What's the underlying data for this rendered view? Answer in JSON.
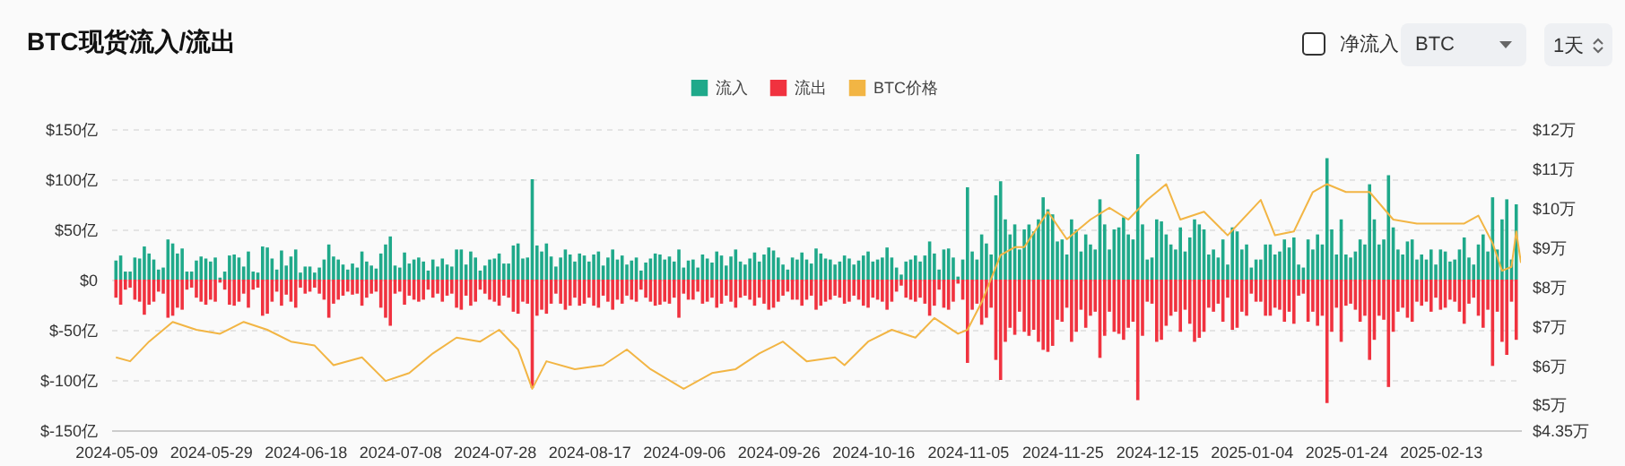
{
  "chart_data": {
    "type": "bar",
    "title": "BTC现货流入/流出",
    "annotations": [
      "净流入",
      "BTC",
      "1天"
    ],
    "x": [
      "2024-05-09",
      "2024-05-10",
      "2024-05-11",
      "2024-05-12",
      "2024-05-13",
      "2024-05-14",
      "2024-05-15",
      "2024-05-16",
      "2024-05-17",
      "2024-05-18",
      "2024-05-19",
      "2024-05-20",
      "2024-05-21",
      "2024-05-22",
      "2024-05-23",
      "2024-05-24",
      "2024-05-25",
      "2024-05-26",
      "2024-05-27",
      "2024-05-28",
      "2024-05-29",
      "2024-05-30",
      "2024-05-31",
      "2024-06-01",
      "2024-06-02",
      "2024-06-03",
      "2024-06-04",
      "2024-06-05",
      "2024-06-06",
      "2024-06-07",
      "2024-06-08",
      "2024-06-09",
      "2024-06-10",
      "2024-06-11",
      "2024-06-12",
      "2024-06-13",
      "2024-06-14",
      "2024-06-15",
      "2024-06-16",
      "2024-06-17",
      "2024-06-18",
      "2024-06-19",
      "2024-06-20",
      "2024-06-21",
      "2024-06-22",
      "2024-06-23",
      "2024-06-24",
      "2024-06-25",
      "2024-06-26",
      "2024-06-27",
      "2024-06-28",
      "2024-06-29",
      "2024-06-30",
      "2024-07-01",
      "2024-07-02",
      "2024-07-03",
      "2024-07-04",
      "2024-07-05",
      "2024-07-06",
      "2024-07-07",
      "2024-07-08",
      "2024-07-09",
      "2024-07-10",
      "2024-07-11",
      "2024-07-12",
      "2024-07-13",
      "2024-07-14",
      "2024-07-15",
      "2024-07-16",
      "2024-07-17",
      "2024-07-18",
      "2024-07-19",
      "2024-07-20",
      "2024-07-21",
      "2024-07-22",
      "2024-07-23",
      "2024-07-24",
      "2024-07-25",
      "2024-07-26",
      "2024-07-27",
      "2024-07-28",
      "2024-07-29",
      "2024-07-30",
      "2024-07-31",
      "2024-08-01",
      "2024-08-02",
      "2024-08-03",
      "2024-08-04",
      "2024-08-05",
      "2024-08-06",
      "2024-08-07",
      "2024-08-08",
      "2024-08-09",
      "2024-08-10",
      "2024-08-11",
      "2024-08-12",
      "2024-08-13",
      "2024-08-14",
      "2024-08-15",
      "2024-08-16",
      "2024-08-17",
      "2024-08-18",
      "2024-08-19",
      "2024-08-20",
      "2024-08-21",
      "2024-08-22",
      "2024-08-23",
      "2024-08-24",
      "2024-08-25",
      "2024-08-26",
      "2024-08-27",
      "2024-08-28",
      "2024-08-29",
      "2024-08-30",
      "2024-08-31",
      "2024-09-01",
      "2024-09-02",
      "2024-09-03",
      "2024-09-04",
      "2024-09-05",
      "2024-09-06",
      "2024-09-07",
      "2024-09-08",
      "2024-09-09",
      "2024-09-10",
      "2024-09-11",
      "2024-09-12",
      "2024-09-13",
      "2024-09-14",
      "2024-09-15",
      "2024-09-16",
      "2024-09-17",
      "2024-09-18",
      "2024-09-19",
      "2024-09-20",
      "2024-09-21",
      "2024-09-22",
      "2024-09-23",
      "2024-09-24",
      "2024-09-25",
      "2024-09-26",
      "2024-09-27",
      "2024-09-28",
      "2024-09-29",
      "2024-09-30",
      "2024-10-01",
      "2024-10-02",
      "2024-10-03",
      "2024-10-04",
      "2024-10-05",
      "2024-10-06",
      "2024-10-07",
      "2024-10-08",
      "2024-10-09",
      "2024-10-10",
      "2024-10-11",
      "2024-10-12",
      "2024-10-13",
      "2024-10-14",
      "2024-10-15",
      "2024-10-16",
      "2024-10-17",
      "2024-10-18",
      "2024-10-19",
      "2024-10-20",
      "2024-10-21",
      "2024-10-22",
      "2024-10-23",
      "2024-10-24",
      "2024-10-25",
      "2024-10-26",
      "2024-10-27",
      "2024-10-28",
      "2024-10-29",
      "2024-10-30",
      "2024-10-31",
      "2024-11-01",
      "2024-11-02",
      "2024-11-03",
      "2024-11-04",
      "2024-11-05",
      "2024-11-06",
      "2024-11-07",
      "2024-11-08",
      "2024-11-09",
      "2024-11-10",
      "2024-11-11",
      "2024-11-12",
      "2024-11-13",
      "2024-11-14",
      "2024-11-15",
      "2024-11-16",
      "2024-11-17",
      "2024-11-18",
      "2024-11-19",
      "2024-11-20",
      "2024-11-21",
      "2024-11-22",
      "2024-11-23",
      "2024-11-24",
      "2024-11-25",
      "2024-11-26",
      "2024-11-27",
      "2024-11-28",
      "2024-11-29",
      "2024-11-30",
      "2024-12-01",
      "2024-12-02",
      "2024-12-03",
      "2024-12-04",
      "2024-12-05",
      "2024-12-06",
      "2024-12-07",
      "2024-12-08",
      "2024-12-09",
      "2024-12-10",
      "2024-12-11",
      "2024-12-12",
      "2024-12-13",
      "2024-12-14",
      "2024-12-15",
      "2024-12-16",
      "2024-12-17",
      "2024-12-18",
      "2024-12-19",
      "2024-12-20",
      "2024-12-21",
      "2024-12-22",
      "2024-12-23",
      "2024-12-24",
      "2024-12-25",
      "2024-12-26",
      "2024-12-27",
      "2024-12-28",
      "2024-12-29",
      "2024-12-30",
      "2024-12-31",
      "2025-01-01",
      "2025-01-02",
      "2025-01-03",
      "2025-01-04",
      "2025-01-05",
      "2025-01-06",
      "2025-01-07",
      "2025-01-08",
      "2025-01-09",
      "2025-01-10",
      "2025-01-11",
      "2025-01-12",
      "2025-01-13",
      "2025-01-14",
      "2025-01-15",
      "2025-01-16",
      "2025-01-17",
      "2025-01-18",
      "2025-01-19",
      "2025-01-20",
      "2025-01-21",
      "2025-01-22",
      "2025-01-23",
      "2025-01-24",
      "2025-01-25",
      "2025-01-26",
      "2025-01-27",
      "2025-01-28",
      "2025-01-29",
      "2025-01-30",
      "2025-01-31",
      "2025-02-01",
      "2025-02-02",
      "2025-02-03",
      "2025-02-04",
      "2025-02-05",
      "2025-02-06",
      "2025-02-07",
      "2025-02-08",
      "2025-02-09",
      "2025-02-10",
      "2025-02-11",
      "2025-02-12",
      "2025-02-13",
      "2025-02-14",
      "2025-02-15",
      "2025-02-16",
      "2025-02-17",
      "2025-02-18",
      "2025-02-19",
      "2025-02-20",
      "2025-02-21",
      "2025-02-22",
      "2025-02-23",
      "2025-02-24",
      "2025-02-25",
      "2025-02-26",
      "2025-02-27",
      "2025-02-28",
      "2025-03-01"
    ],
    "xlim": [
      "2024-05-08",
      "2025-03-02"
    ],
    "xticks": [
      "2024-05-09",
      "2024-05-29",
      "2024-06-18",
      "2024-07-08",
      "2024-07-28",
      "2024-08-17",
      "2024-09-06",
      "2024-09-26",
      "2024-10-16",
      "2024-11-05",
      "2024-11-25",
      "2024-12-15",
      "2025-01-04",
      "2025-01-24",
      "2025-02-13"
    ],
    "ylim": [
      -150,
      150
    ],
    "yticks": [
      {
        "value": -150,
        "label": "$-150亿"
      },
      {
        "value": -100,
        "label": "$-100亿"
      },
      {
        "value": -50,
        "label": "$-50亿"
      },
      {
        "value": 0,
        "label": "$0"
      },
      {
        "value": 50,
        "label": "$50亿"
      },
      {
        "value": 100,
        "label": "$100亿"
      },
      {
        "value": 150,
        "label": "$150亿"
      }
    ],
    "y2lim": [
      4.35,
      12
    ],
    "y2ticks": [
      {
        "value": 4.35,
        "label": "$4.35万"
      },
      {
        "value": 5,
        "label": "$5万"
      },
      {
        "value": 6,
        "label": "$6万"
      },
      {
        "value": 7,
        "label": "$7万"
      },
      {
        "value": 8,
        "label": "$8万"
      },
      {
        "value": 9,
        "label": "$9万"
      },
      {
        "value": 10,
        "label": "$10万"
      },
      {
        "value": 11,
        "label": "$11万"
      },
      {
        "value": 12,
        "label": "$12万"
      }
    ],
    "grid": "y",
    "legend": "top",
    "series": [
      {
        "name": "流入",
        "color": "#1fa98a",
        "values": [
          19,
          24,
          8,
          8,
          22,
          21,
          33,
          26,
          20,
          10,
          12,
          40,
          36,
          26,
          31,
          8,
          8,
          19,
          23,
          21,
          18,
          22,
          2,
          8,
          24,
          25,
          22,
          13,
          28,
          8,
          7,
          33,
          32,
          21,
          10,
          29,
          14,
          23,
          30,
          7,
          13,
          13,
          7,
          12,
          20,
          35,
          23,
          20,
          15,
          10,
          16,
          12,
          28,
          18,
          14,
          11,
          26,
          35,
          43,
          14,
          12,
          27,
          16,
          20,
          22,
          18,
          9,
          20,
          13,
          21,
          15,
          13,
          30,
          30,
          15,
          28,
          22,
          9,
          14,
          20,
          21,
          26,
          16,
          16,
          34,
          36,
          21,
          22,
          100,
          34,
          28,
          36,
          23,
          13,
          22,
          30,
          25,
          18,
          26,
          24,
          18,
          25,
          28,
          14,
          22,
          30,
          20,
          24,
          15,
          19,
          22,
          9,
          17,
          21,
          26,
          25,
          20,
          23,
          18,
          30,
          12,
          19,
          20,
          12,
          25,
          21,
          17,
          28,
          24,
          14,
          23,
          30,
          18,
          15,
          21,
          27,
          18,
          25,
          32,
          29,
          22,
          15,
          10,
          22,
          20,
          27,
          20,
          16,
          31,
          26,
          21,
          20,
          15,
          18,
          24,
          21,
          15,
          19,
          24,
          28,
          18,
          20,
          22,
          32,
          22,
          12,
          5,
          18,
          20,
          24,
          18,
          24,
          38,
          26,
          10,
          30,
          31,
          22,
          3,
          20,
          92,
          28,
          20,
          45,
          36,
          25,
          84,
          98,
          60,
          45,
          55,
          30,
          50,
          55,
          48,
          60,
          82,
          70,
          65,
          38,
          40,
          25,
          60,
          50,
          28,
          45,
          35,
          30,
          80,
          55,
          30,
          50,
          52,
          62,
          45,
          40,
          125,
          55,
          20,
          22,
          60,
          58,
          45,
          35,
          30,
          52,
          28,
          42,
          60,
          55,
          50,
          25,
          30,
          22,
          40,
          15,
          52,
          48,
          30,
          35,
          12,
          20,
          20,
          35,
          35,
          25,
          28,
          40,
          32,
          42,
          15,
          12,
          40,
          30,
          45,
          35,
          121,
          50,
          25,
          60,
          25,
          22,
          28,
          40,
          35,
          95,
          60,
          35,
          40,
          104,
          52,
          30,
          25,
          38,
          40,
          20,
          25,
          20,
          30,
          15,
          30,
          28,
          18,
          20,
          30,
          42,
          22,
          15,
          35,
          45,
          28,
          82,
          30,
          60,
          80,
          20,
          75
        ]
      },
      {
        "name": "流出",
        "color": "#f0323f",
        "values": [
          -18,
          -25,
          -10,
          -8,
          -20,
          -22,
          -35,
          -25,
          -22,
          -12,
          -14,
          -38,
          -36,
          -28,
          -30,
          -10,
          -8,
          -18,
          -22,
          -25,
          -20,
          -22,
          -3,
          -10,
          -25,
          -26,
          -22,
          -14,
          -28,
          -10,
          -8,
          -36,
          -34,
          -22,
          -12,
          -26,
          -15,
          -22,
          -28,
          -8,
          -14,
          -12,
          -8,
          -14,
          -20,
          -38,
          -24,
          -20,
          -16,
          -12,
          -15,
          -14,
          -26,
          -18,
          -14,
          -12,
          -28,
          -38,
          -46,
          -14,
          -12,
          -25,
          -16,
          -20,
          -22,
          -20,
          -10,
          -18,
          -14,
          -22,
          -16,
          -14,
          -28,
          -30,
          -16,
          -26,
          -22,
          -10,
          -14,
          -20,
          -22,
          -26,
          -16,
          -18,
          -32,
          -34,
          -22,
          -24,
          -108,
          -36,
          -30,
          -34,
          -24,
          -14,
          -24,
          -30,
          -26,
          -18,
          -26,
          -24,
          -18,
          -26,
          -28,
          -16,
          -22,
          -30,
          -20,
          -24,
          -16,
          -20,
          -22,
          -10,
          -18,
          -22,
          -26,
          -25,
          -22,
          -24,
          -18,
          -38,
          -14,
          -20,
          -20,
          -12,
          -24,
          -22,
          -18,
          -28,
          -24,
          -16,
          -22,
          -28,
          -18,
          -16,
          -20,
          -26,
          -18,
          -24,
          -30,
          -28,
          -22,
          -16,
          -12,
          -20,
          -20,
          -26,
          -20,
          -16,
          -30,
          -26,
          -22,
          -20,
          -16,
          -18,
          -24,
          -22,
          -16,
          -20,
          -26,
          -28,
          -18,
          -20,
          -22,
          -30,
          -22,
          -12,
          -6,
          -18,
          -20,
          -22,
          -18,
          -24,
          -36,
          -26,
          -10,
          -28,
          -30,
          -22,
          -4,
          -20,
          -83,
          -30,
          -24,
          -45,
          -38,
          -28,
          -80,
          -100,
          -62,
          -48,
          -55,
          -32,
          -52,
          -56,
          -50,
          -62,
          -70,
          -72,
          -66,
          -40,
          -42,
          -28,
          -62,
          -52,
          -30,
          -48,
          -36,
          -32,
          -78,
          -56,
          -32,
          -52,
          -54,
          -60,
          -48,
          -42,
          -120,
          -56,
          -22,
          -24,
          -62,
          -60,
          -46,
          -36,
          -32,
          -52,
          -30,
          -44,
          -62,
          -58,
          -52,
          -28,
          -32,
          -24,
          -42,
          -18,
          -50,
          -48,
          -32,
          -36,
          -14,
          -22,
          -22,
          -36,
          -36,
          -28,
          -30,
          -42,
          -32,
          -44,
          -16,
          -14,
          -42,
          -32,
          -46,
          -36,
          -123,
          -52,
          -28,
          -62,
          -26,
          -24,
          -30,
          -42,
          -36,
          -80,
          -60,
          -36,
          -40,
          -107,
          -52,
          -32,
          -28,
          -38,
          -42,
          -22,
          -26,
          -22,
          -32,
          -18,
          -30,
          -28,
          -20,
          -22,
          -32,
          -44,
          -24,
          -18,
          -36,
          -48,
          -30,
          -86,
          -32,
          -62,
          -75,
          -22,
          -60
        ]
      },
      {
        "name": "BTC价格",
        "color": "#f2b544",
        "type": "line",
        "axis": "y2",
        "x": [
          "2024-05-09",
          "2024-05-12",
          "2024-05-16",
          "2024-05-21",
          "2024-05-26",
          "2024-05-31",
          "2024-06-05",
          "2024-06-10",
          "2024-06-15",
          "2024-06-20",
          "2024-06-24",
          "2024-06-30",
          "2024-07-05",
          "2024-07-10",
          "2024-07-15",
          "2024-07-20",
          "2024-07-25",
          "2024-07-29",
          "2024-08-02",
          "2024-08-05",
          "2024-08-08",
          "2024-08-14",
          "2024-08-20",
          "2024-08-25",
          "2024-08-30",
          "2024-09-06",
          "2024-09-12",
          "2024-09-17",
          "2024-09-22",
          "2024-09-27",
          "2024-10-02",
          "2024-10-08",
          "2024-10-10",
          "2024-10-15",
          "2024-10-20",
          "2024-10-25",
          "2024-10-29",
          "2024-11-03",
          "2024-11-05",
          "2024-11-08",
          "2024-11-12",
          "2024-11-15",
          "2024-11-17",
          "2024-11-22",
          "2024-11-26",
          "2024-12-01",
          "2024-12-05",
          "2024-12-09",
          "2024-12-13",
          "2024-12-17",
          "2024-12-20",
          "2024-12-25",
          "2024-12-30",
          "2025-01-06",
          "2025-01-09",
          "2025-01-13",
          "2025-01-17",
          "2025-01-20",
          "2025-01-24",
          "2025-01-29",
          "2025-02-03",
          "2025-02-08",
          "2025-02-13",
          "2025-02-18",
          "2025-02-21",
          "2025-02-24",
          "2025-02-26",
          "2025-02-28",
          "2025-03-01",
          "2025-03-02"
        ],
        "values": [
          6.2,
          6.1,
          6.6,
          7.1,
          6.9,
          6.8,
          7.1,
          6.9,
          6.6,
          6.5,
          6.0,
          6.2,
          5.6,
          5.8,
          6.3,
          6.7,
          6.6,
          6.9,
          6.4,
          5.4,
          6.1,
          5.9,
          6.0,
          6.4,
          5.9,
          5.4,
          5.8,
          5.9,
          6.3,
          6.6,
          6.1,
          6.2,
          6.0,
          6.6,
          6.9,
          6.7,
          7.2,
          6.8,
          6.9,
          7.6,
          8.8,
          9.0,
          9.0,
          9.9,
          9.2,
          9.7,
          10.0,
          9.7,
          10.2,
          10.6,
          9.7,
          9.9,
          9.3,
          10.2,
          9.3,
          9.4,
          10.4,
          10.6,
          10.4,
          10.4,
          9.7,
          9.6,
          9.6,
          9.6,
          9.8,
          9.1,
          8.4,
          8.5,
          9.4,
          8.6
        ]
      }
    ]
  }
}
